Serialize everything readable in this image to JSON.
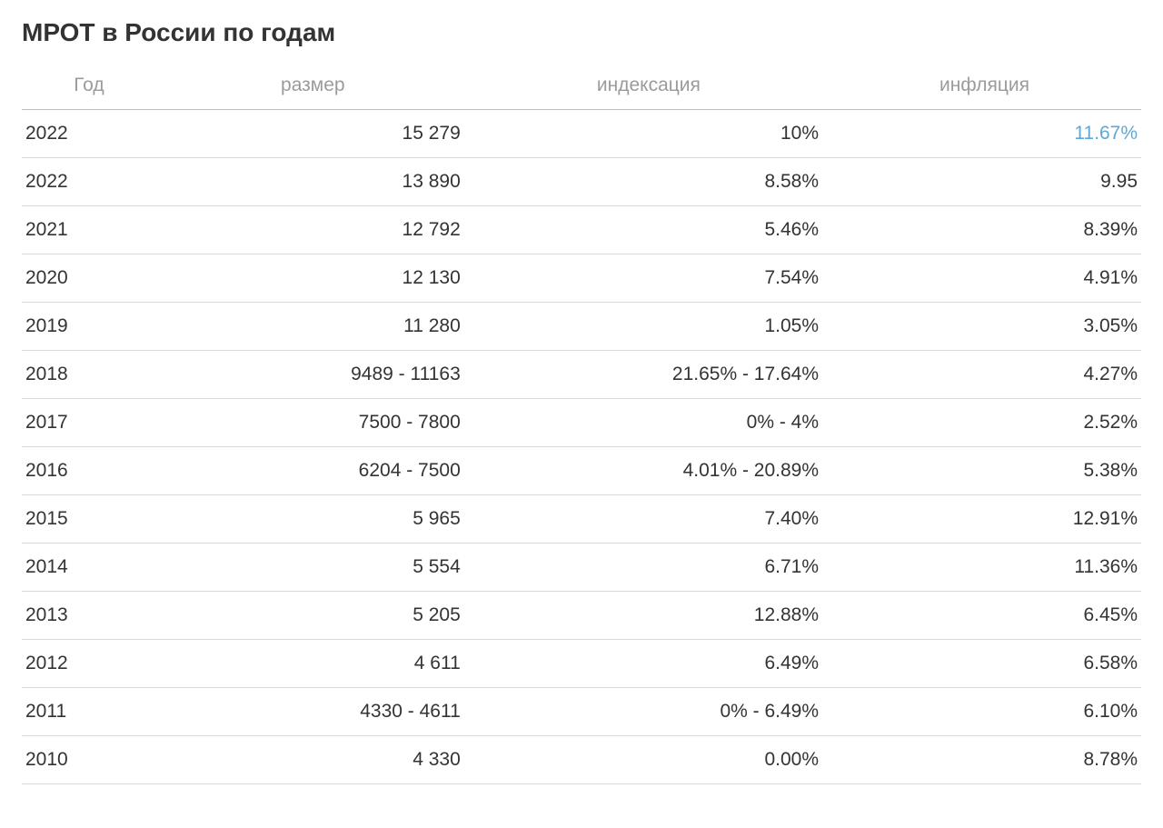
{
  "title": "МРОТ в России по годам",
  "table": {
    "type": "table",
    "background_color": "#ffffff",
    "text_color": "#333333",
    "header_text_color": "#9b9b9b",
    "border_color": "#d9d9d9",
    "header_border_color": "#bfbfbf",
    "link_color": "#5fa8d3",
    "title_fontsize": 28,
    "header_fontsize": 21,
    "cell_fontsize": 21,
    "columns": [
      {
        "key": "year",
        "label": "Год",
        "align": "left",
        "width_pct": 12
      },
      {
        "key": "size",
        "label": "размер",
        "align": "right",
        "width_pct": 28
      },
      {
        "key": "indexation",
        "label": "индексация",
        "align": "right",
        "width_pct": 32
      },
      {
        "key": "inflation",
        "label": "инфляция",
        "align": "right",
        "width_pct": 28
      }
    ],
    "rows": [
      {
        "year": "2022",
        "size": "15 279",
        "indexation": "10%",
        "inflation": "11.67%",
        "inflation_is_link": true
      },
      {
        "year": "2022",
        "size": "13 890",
        "indexation": "8.58%",
        "inflation": "9.95"
      },
      {
        "year": "2021",
        "size": "12 792",
        "indexation": "5.46%",
        "inflation": "8.39%"
      },
      {
        "year": "2020",
        "size": "12 130",
        "indexation": "7.54%",
        "inflation": "4.91%"
      },
      {
        "year": "2019",
        "size": "11 280",
        "indexation": "1.05%",
        "inflation": "3.05%"
      },
      {
        "year": "2018",
        "size": "9489 - 11163",
        "indexation": "21.65% - 17.64%",
        "inflation": "4.27%"
      },
      {
        "year": "2017",
        "size": "7500 - 7800",
        "indexation": "0% - 4%",
        "inflation": "2.52%"
      },
      {
        "year": "2016",
        "size": "6204 - 7500",
        "indexation": "4.01% - 20.89%",
        "inflation": "5.38%"
      },
      {
        "year": "2015",
        "size": "5 965",
        "indexation": "7.40%",
        "inflation": "12.91%"
      },
      {
        "year": "2014",
        "size": "5 554",
        "indexation": "6.71%",
        "inflation": "11.36%"
      },
      {
        "year": "2013",
        "size": "5 205",
        "indexation": "12.88%",
        "inflation": "6.45%"
      },
      {
        "year": "2012",
        "size": "4 611",
        "indexation": "6.49%",
        "inflation": "6.58%"
      },
      {
        "year": "2011",
        "size": "4330 - 4611",
        "indexation": "0% - 6.49%",
        "inflation": "6.10%"
      },
      {
        "year": "2010",
        "size": "4 330",
        "indexation": "0.00%",
        "inflation": "8.78%"
      }
    ]
  }
}
